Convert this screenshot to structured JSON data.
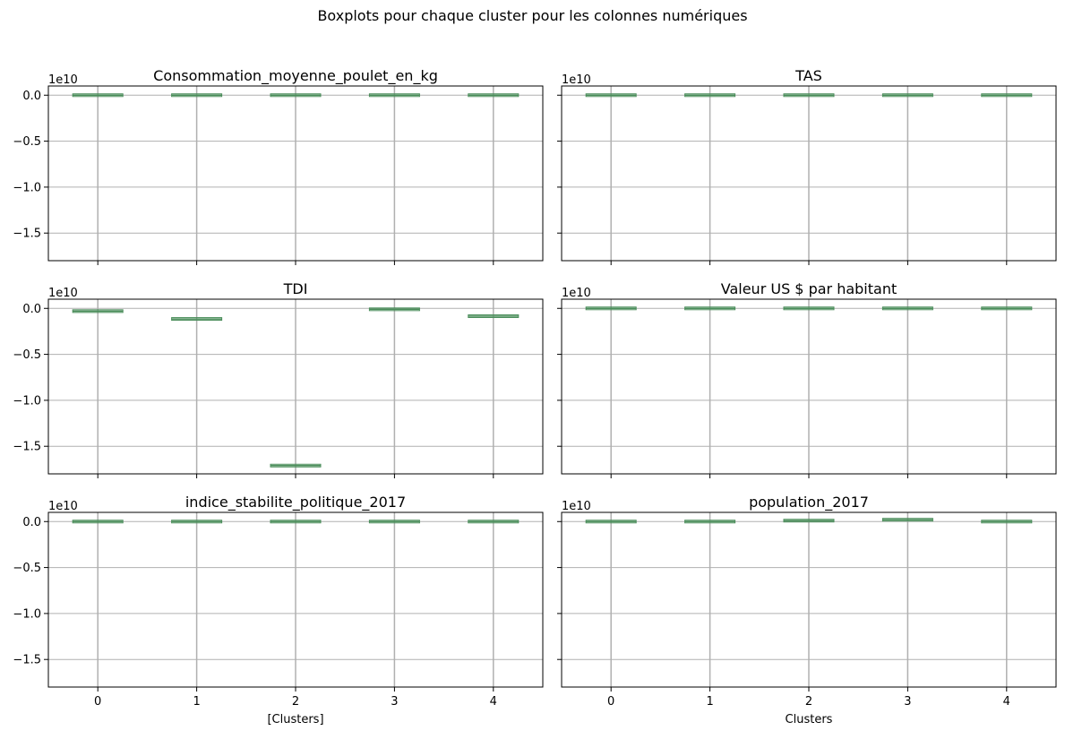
{
  "suptitle": "Boxplots pour chaque cluster pour les colonnes numériques",
  "chart_data": {
    "type": "box",
    "categories": [
      "0",
      "1",
      "2",
      "3",
      "4"
    ],
    "ylim": [
      -1.8,
      0.1
    ],
    "y_offset_label": "1e10",
    "yticks": [
      0.0,
      -0.5,
      -1.0,
      -1.5
    ],
    "ytick_labels": [
      "0.0",
      "−0.5",
      "−1.0",
      "−1.5"
    ],
    "grid": true,
    "colors": {
      "box": "#4a8d5a",
      "grid": "#b0b0b0",
      "axis": "#000000"
    },
    "panels": [
      {
        "title": "Consommation_moyenne_poulet_en_kg",
        "values": [
          0,
          0,
          0,
          0,
          0
        ],
        "xlabel": ""
      },
      {
        "title": "TAS",
        "values": [
          0,
          0,
          0,
          0,
          0
        ],
        "xlabel": ""
      },
      {
        "title": "TDI",
        "values": [
          -0.03,
          -0.115,
          -1.71,
          -0.01,
          -0.085
        ],
        "xlabel": ""
      },
      {
        "title": "Valeur US $ par habitant",
        "values": [
          0,
          0,
          0,
          0,
          0
        ],
        "xlabel": ""
      },
      {
        "title": "indice_stabilite_politique_2017",
        "values": [
          0,
          0,
          0,
          0,
          0
        ],
        "xlabel": "[Clusters]"
      },
      {
        "title": "population_2017",
        "values": [
          0,
          0,
          0.01,
          0.02,
          0
        ],
        "xlabel": "Clusters"
      }
    ]
  }
}
